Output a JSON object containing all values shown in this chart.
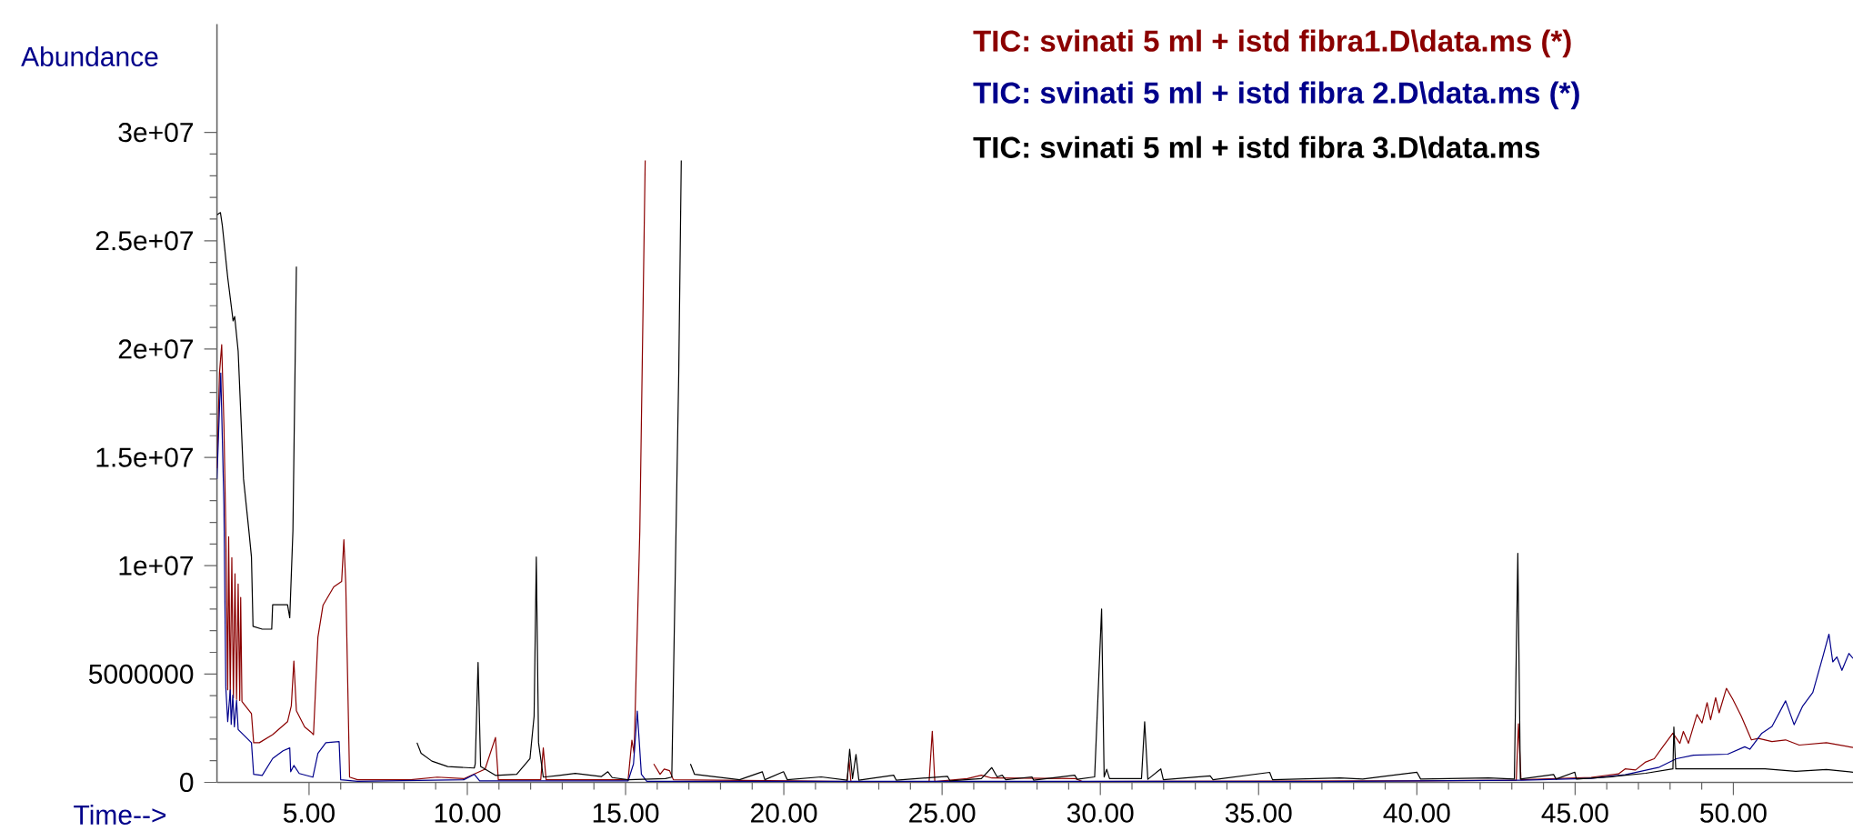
{
  "chart_data": {
    "type": "line",
    "xlabel": "Time-->",
    "ylabel": "Abundance",
    "xlim": [
      2.09,
      53.78
    ],
    "ylim": [
      0,
      35000000
    ],
    "xticks": [
      {
        "value": 5,
        "label": "5.00"
      },
      {
        "value": 10,
        "label": "10.00"
      },
      {
        "value": 15,
        "label": "15.00"
      },
      {
        "value": 20,
        "label": "20.00"
      },
      {
        "value": 25,
        "label": "25.00"
      },
      {
        "value": 30,
        "label": "30.00"
      },
      {
        "value": 35,
        "label": "35.00"
      },
      {
        "value": 40,
        "label": "40.00"
      },
      {
        "value": 45,
        "label": "45.00"
      },
      {
        "value": 50,
        "label": "50.00"
      }
    ],
    "yticks": [
      0,
      5000000,
      {
        "value": 10000000,
        "label": "1e+07"
      },
      {
        "value": 15000000,
        "label": "1.5e+07"
      },
      {
        "value": 20000000,
        "label": "2e+07"
      },
      {
        "value": 25000000,
        "label": "2.5e+07"
      },
      {
        "value": 30000000,
        "label": "3e+07"
      }
    ],
    "legend": "top right",
    "marker": "none",
    "line_style": "solid",
    "series": [
      {
        "name": "TIC: svinati 5 ml + istd fibra1.D\\data.ms (*)",
        "color": "#8b0000",
        "x": [
          2.09,
          2.17,
          2.24,
          2.31,
          2.37,
          2.43,
          2.46,
          2.51,
          2.56,
          2.61,
          2.66,
          2.71,
          2.76,
          2.81,
          2.84,
          2.88,
          3.18,
          3.25,
          3.43,
          3.85,
          4.32,
          4.44,
          4.52,
          4.6,
          4.86,
          5.06,
          5.14,
          5.28,
          5.44,
          5.78,
          6.03,
          6.1,
          6.16,
          6.28,
          6.53,
          8.21,
          9.05,
          9.89,
          10.56,
          10.89,
          10.98,
          12.32,
          12.4,
          12.49,
          15.08,
          15.2,
          15.27,
          15.45,
          15.62,
          15.69,
          15.84,
          15.89,
          16.09,
          16.22,
          16.39,
          16.51,
          20.28,
          22.0,
          22.06,
          22.12,
          24.59,
          24.69,
          24.77,
          25.8,
          26.24,
          26.57,
          29.21,
          29.43,
          40.01,
          43.14,
          43.21,
          43.29,
          45.51,
          46.37,
          46.58,
          46.91,
          47.23,
          47.5,
          47.77,
          48.09,
          48.31,
          48.42,
          48.58,
          48.85,
          49.01,
          49.17,
          49.28,
          49.44,
          49.55,
          49.78,
          49.98,
          50.25,
          50.57,
          50.79,
          51.22,
          51.65,
          52.08,
          52.94,
          53.78
        ],
        "values": [
          14500000.0,
          18900000.0,
          20200000.0,
          16500000.0,
          11600000.0,
          4270000.0,
          11340000.0,
          4020000.0,
          10370000.0,
          3900000.0,
          9630000.0,
          3830000.0,
          9150000.0,
          3780000.0,
          8540000.0,
          3730000.0,
          3170000.0,
          1830000.0,
          1830000.0,
          2200000.0,
          2800000.0,
          3540000.0,
          5600000.0,
          3300000.0,
          2560000.0,
          2320000.0,
          2200000.0,
          6700000.0,
          8170000.0,
          9020000.0,
          9270000.0,
          11200000.0,
          9150000.0,
          240000.0,
          120000.0,
          120000.0,
          240000.0,
          170000.0,
          610000.0,
          2070000.0,
          120000.0,
          120000.0,
          1590000.0,
          120000.0,
          120000.0,
          1950000.0,
          1340000.0,
          11600000.0,
          28700000.0,
          null,
          null,
          850000.0,
          370000.0,
          610000.0,
          540000.0,
          120000.0,
          70000.0,
          40000.0,
          1050000.0,
          40000.0,
          40000.0,
          2360000.0,
          40000.0,
          170000.0,
          330000.0,
          200000.0,
          170000.0,
          40000.0,
          70000.0,
          100000.0,
          2700000.0,
          120000.0,
          230000.0,
          390000.0,
          620000.0,
          570000.0,
          940000.0,
          1090000.0,
          1640000.0,
          2270000.0,
          1800000.0,
          2350000.0,
          1800000.0,
          3130000.0,
          2740000.0,
          3680000.0,
          2890000.0,
          3910000.0,
          3210000.0,
          4340000.0,
          3840000.0,
          3050000.0,
          1960000.0,
          2030000.0,
          1880000.0,
          1960000.0,
          1720000.0,
          1830000.0,
          1610000.0
        ]
      },
      {
        "name": "TIC: svinati 5 ml + istd fibra 2.D\\data.ms (*)",
        "color": "#00008b",
        "x": [
          2.09,
          2.21,
          2.31,
          2.37,
          2.43,
          2.51,
          2.54,
          2.59,
          2.64,
          2.71,
          2.76,
          3.18,
          3.25,
          3.52,
          3.85,
          4.18,
          4.39,
          4.42,
          4.52,
          4.69,
          5.12,
          5.28,
          5.53,
          5.95,
          6.0,
          6.53,
          9.89,
          10.22,
          10.39,
          15.08,
          15.25,
          15.37,
          15.5,
          15.67,
          36.89,
          43.35,
          45.51,
          46.58,
          47.66,
          48.2,
          48.74,
          49.82,
          50.36,
          50.52,
          50.9,
          51.22,
          51.65,
          51.92,
          52.19,
          52.51,
          52.84,
          53.02,
          53.14,
          53.27,
          53.43,
          53.65,
          53.78
        ],
        "values": [
          14000000.0,
          18900000.0,
          12800000.0,
          4390000.0,
          2800000.0,
          4270000.0,
          2680000.0,
          4020000.0,
          2560000.0,
          3780000.0,
          2440000.0,
          1830000.0,
          370000.0,
          320000.0,
          1100000.0,
          1460000.0,
          1590000.0,
          490000.0,
          780000.0,
          410000.0,
          240000.0,
          1340000.0,
          1830000.0,
          1880000.0,
          120000.0,
          50000.0,
          120000.0,
          370000.0,
          70000.0,
          70000.0,
          850000.0,
          3290000.0,
          370000.0,
          50000.0,
          40000.0,
          100000.0,
          180000.0,
          350000.0,
          700000.0,
          1090000.0,
          1250000.0,
          1300000.0,
          1640000.0,
          1530000.0,
          2270000.0,
          2580000.0,
          3760000.0,
          2660000.0,
          3520000.0,
          4150000.0,
          5870000.0,
          6840000.0,
          5560000.0,
          5790000.0,
          5170000.0,
          5950000.0,
          5720000.0
        ]
      },
      {
        "name": "TIC: svinati 5 ml + istd fibra 3.D\\data.ms",
        "color": "#000000",
        "x": [
          2.09,
          2.2,
          2.26,
          2.43,
          2.6,
          2.65,
          2.76,
          2.93,
          3.1,
          3.18,
          3.23,
          3.52,
          3.82,
          3.85,
          4.32,
          4.39,
          4.49,
          4.6,
          4.72,
          6.5,
          8.38,
          8.41,
          8.54,
          8.88,
          9.38,
          10.22,
          10.25,
          10.34,
          10.42,
          10.89,
          11.56,
          11.98,
          12.11,
          12.18,
          12.25,
          12.4,
          12.9,
          13.41,
          14.24,
          14.44,
          14.58,
          15.08,
          16.26,
          16.46,
          16.68,
          16.76,
          16.9,
          17.0,
          17.05,
          17.18,
          18.6,
          19.32,
          19.4,
          19.99,
          20.11,
          21.18,
          22.0,
          22.08,
          22.17,
          22.28,
          22.37,
          23.47,
          23.55,
          25.17,
          25.25,
          26.24,
          26.57,
          26.74,
          26.9,
          27.01,
          27.84,
          27.89,
          29.19,
          29.27,
          29.82,
          30.04,
          30.12,
          30.2,
          30.29,
          31.3,
          31.4,
          31.5,
          31.91,
          31.99,
          33.47,
          33.56,
          35.35,
          35.44,
          37.57,
          38.29,
          40.0,
          40.12,
          42.27,
          43.08,
          43.19,
          43.27,
          44.32,
          44.4,
          44.99,
          45.04,
          46.15,
          47.23,
          48.09,
          48.12,
          48.18,
          48.74,
          49.92,
          51.0,
          51.97,
          52.94,
          53.78
        ],
        "values": [
          26200000.0,
          26300000.0,
          25700000.0,
          23300000.0,
          21300000.0,
          21500000.0,
          19900000.0,
          14000000.0,
          11600000.0,
          10400000.0,
          7200000.0,
          7070000.0,
          7070000.0,
          8200000.0,
          8200000.0,
          7600000.0,
          11600000.0,
          23800000.0,
          null,
          null,
          null,
          1830000.0,
          1340000.0,
          980000.0,
          730000.0,
          660000.0,
          850000.0,
          5540000.0,
          730000.0,
          320000.0,
          370000.0,
          1100000.0,
          3050000.0,
          10400000.0,
          1830000.0,
          240000.0,
          320000.0,
          410000.0,
          270000.0,
          490000.0,
          220000.0,
          120000.0,
          170000.0,
          240000.0,
          18900000.0,
          28700000.0,
          null,
          null,
          850000.0,
          370000.0,
          120000.0,
          490000.0,
          120000.0,
          490000.0,
          120000.0,
          250000.0,
          100000.0,
          1530000.0,
          170000.0,
          1290000.0,
          100000.0,
          330000.0,
          100000.0,
          280000.0,
          70000.0,
          170000.0,
          680000.0,
          250000.0,
          330000.0,
          120000.0,
          250000.0,
          100000.0,
          330000.0,
          140000.0,
          250000.0,
          8000000.0,
          250000.0,
          600000.0,
          170000.0,
          170000.0,
          2800000.0,
          140000.0,
          620000.0,
          120000.0,
          300000.0,
          120000.0,
          460000.0,
          120000.0,
          200000.0,
          150000.0,
          470000.0,
          150000.0,
          200000.0,
          150000.0,
          10570000.0,
          150000.0,
          360000.0,
          150000.0,
          470000.0,
          150000.0,
          260000.0,
          420000.0,
          620000.0,
          2550000.0,
          620000.0,
          620000.0,
          620000.0,
          620000.0,
          510000.0,
          590000.0,
          470000.0
        ]
      }
    ]
  }
}
